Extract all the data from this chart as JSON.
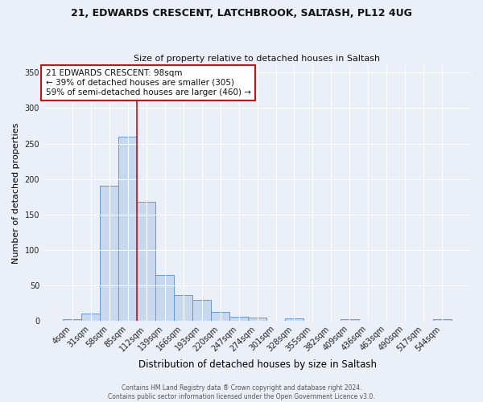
{
  "title1": "21, EDWARDS CRESCENT, LATCHBROOK, SALTASH, PL12 4UG",
  "title2": "Size of property relative to detached houses in Saltash",
  "xlabel": "Distribution of detached houses by size in Saltash",
  "ylabel": "Number of detached properties",
  "bar_labels": [
    "4sqm",
    "31sqm",
    "58sqm",
    "85sqm",
    "112sqm",
    "139sqm",
    "166sqm",
    "193sqm",
    "220sqm",
    "247sqm",
    "274sqm",
    "301sqm",
    "328sqm",
    "355sqm",
    "382sqm",
    "409sqm",
    "436sqm",
    "463sqm",
    "490sqm",
    "517sqm",
    "544sqm"
  ],
  "bar_heights": [
    2,
    10,
    191,
    260,
    168,
    65,
    36,
    29,
    12,
    5,
    4,
    0,
    3,
    0,
    0,
    2,
    0,
    0,
    0,
    0,
    2
  ],
  "bar_color": "#c8d8ee",
  "bar_edge_color": "#6699cc",
  "bg_color": "#eaeff8",
  "grid_color": "#ffffff",
  "vline_x": 3.5,
  "vline_color": "#cc1111",
  "annotation_text": "21 EDWARDS CRESCENT: 98sqm\n← 39% of detached houses are smaller (305)\n59% of semi-detached houses are larger (460) →",
  "annotation_box_color": "#ffffff",
  "annotation_box_edge": "#cc1111",
  "footer": "Contains HM Land Registry data ® Crown copyright and database right 2024.\nContains public sector information licensed under the Open Government Licence v3.0.",
  "ylim": [
    0,
    360
  ],
  "yticks": [
    0,
    50,
    100,
    150,
    200,
    250,
    300,
    350
  ]
}
